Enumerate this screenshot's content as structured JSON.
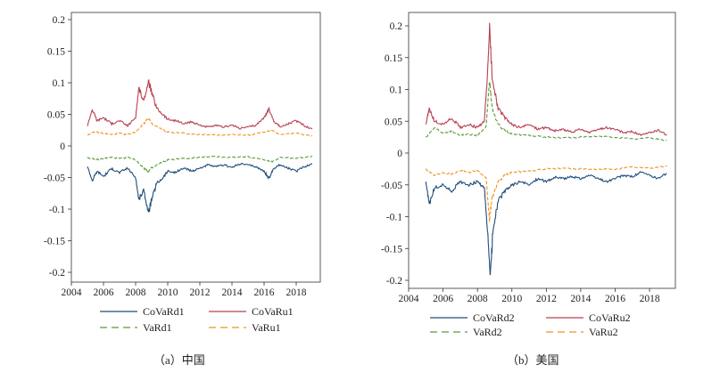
{
  "chart_data": [
    {
      "type": "line",
      "caption": "（a）中国",
      "xlim": [
        2004,
        2019.5
      ],
      "ylim": [
        -0.2,
        0.2
      ],
      "xticks": [
        2004,
        2006,
        2008,
        2010,
        2012,
        2014,
        2016,
        2018
      ],
      "yticks": [
        -0.2,
        -0.15,
        -0.1,
        -0.05,
        0,
        0.05,
        0.1,
        0.15,
        0.2
      ],
      "yticklabels": [
        "-0.2",
        "-0.15",
        "-0.1",
        "-0.05",
        "0",
        "0.05",
        "0.1",
        "0.15",
        "0.2"
      ],
      "legend": [
        "CoVaRd1",
        "CoVaRu1",
        "VaRd1",
        "VaRu1"
      ],
      "series": [
        {
          "name": "CoVaRd1",
          "color": "#1f4e79",
          "dash": "solid",
          "points": [
            [
              2005.0,
              -0.032
            ],
            [
              2005.3,
              -0.055
            ],
            [
              2005.6,
              -0.04
            ],
            [
              2006.0,
              -0.048
            ],
            [
              2006.5,
              -0.036
            ],
            [
              2007.0,
              -0.042
            ],
            [
              2007.5,
              -0.035
            ],
            [
              2008.0,
              -0.05
            ],
            [
              2008.2,
              -0.085
            ],
            [
              2008.5,
              -0.07
            ],
            [
              2008.8,
              -0.106
            ],
            [
              2009.0,
              -0.085
            ],
            [
              2009.3,
              -0.06
            ],
            [
              2009.7,
              -0.05
            ],
            [
              2010.0,
              -0.04
            ],
            [
              2010.5,
              -0.042
            ],
            [
              2011.0,
              -0.035
            ],
            [
              2011.5,
              -0.04
            ],
            [
              2012.0,
              -0.035
            ],
            [
              2012.5,
              -0.03
            ],
            [
              2013.0,
              -0.033
            ],
            [
              2013.5,
              -0.03
            ],
            [
              2014.0,
              -0.034
            ],
            [
              2014.5,
              -0.028
            ],
            [
              2015.0,
              -0.03
            ],
            [
              2015.5,
              -0.033
            ],
            [
              2016.0,
              -0.04
            ],
            [
              2016.3,
              -0.052
            ],
            [
              2016.6,
              -0.035
            ],
            [
              2017.0,
              -0.03
            ],
            [
              2017.5,
              -0.035
            ],
            [
              2018.0,
              -0.04
            ],
            [
              2018.5,
              -0.033
            ],
            [
              2019.0,
              -0.028
            ]
          ]
        },
        {
          "name": "CoVaRu1",
          "color": "#b84150",
          "dash": "solid",
          "points": [
            [
              2005.0,
              0.032
            ],
            [
              2005.3,
              0.058
            ],
            [
              2005.6,
              0.04
            ],
            [
              2006.0,
              0.045
            ],
            [
              2006.5,
              0.035
            ],
            [
              2007.0,
              0.04
            ],
            [
              2007.5,
              0.032
            ],
            [
              2008.0,
              0.045
            ],
            [
              2008.2,
              0.092
            ],
            [
              2008.5,
              0.07
            ],
            [
              2008.8,
              0.102
            ],
            [
              2009.0,
              0.085
            ],
            [
              2009.3,
              0.06
            ],
            [
              2009.7,
              0.05
            ],
            [
              2010.0,
              0.042
            ],
            [
              2010.5,
              0.04
            ],
            [
              2011.0,
              0.035
            ],
            [
              2011.5,
              0.038
            ],
            [
              2012.0,
              0.033
            ],
            [
              2012.5,
              0.03
            ],
            [
              2013.0,
              0.032
            ],
            [
              2013.5,
              0.03
            ],
            [
              2014.0,
              0.033
            ],
            [
              2014.5,
              0.028
            ],
            [
              2015.0,
              0.03
            ],
            [
              2015.5,
              0.033
            ],
            [
              2016.0,
              0.045
            ],
            [
              2016.3,
              0.058
            ],
            [
              2016.6,
              0.04
            ],
            [
              2017.0,
              0.03
            ],
            [
              2017.5,
              0.035
            ],
            [
              2018.0,
              0.04
            ],
            [
              2018.5,
              0.032
            ],
            [
              2019.0,
              0.027
            ]
          ]
        },
        {
          "name": "VaRd1",
          "color": "#5a9a3a",
          "dash": "dashed",
          "points": [
            [
              2005.0,
              -0.018
            ],
            [
              2005.5,
              -0.022
            ],
            [
              2006.0,
              -0.02
            ],
            [
              2006.5,
              -0.018
            ],
            [
              2007.0,
              -0.02
            ],
            [
              2007.5,
              -0.018
            ],
            [
              2008.0,
              -0.022
            ],
            [
              2008.5,
              -0.035
            ],
            [
              2008.8,
              -0.04
            ],
            [
              2009.0,
              -0.035
            ],
            [
              2009.5,
              -0.028
            ],
            [
              2010.0,
              -0.022
            ],
            [
              2011.0,
              -0.02
            ],
            [
              2012.0,
              -0.018
            ],
            [
              2013.0,
              -0.017
            ],
            [
              2014.0,
              -0.018
            ],
            [
              2015.0,
              -0.017
            ],
            [
              2016.0,
              -0.022
            ],
            [
              2016.5,
              -0.025
            ],
            [
              2017.0,
              -0.018
            ],
            [
              2018.0,
              -0.02
            ],
            [
              2019.0,
              -0.016
            ]
          ]
        },
        {
          "name": "VaRu1",
          "color": "#f0921e",
          "dash": "dashed",
          "points": [
            [
              2005.0,
              0.018
            ],
            [
              2005.5,
              0.022
            ],
            [
              2006.0,
              0.02
            ],
            [
              2006.5,
              0.018
            ],
            [
              2007.0,
              0.02
            ],
            [
              2007.5,
              0.018
            ],
            [
              2008.0,
              0.022
            ],
            [
              2008.5,
              0.035
            ],
            [
              2008.8,
              0.045
            ],
            [
              2009.0,
              0.035
            ],
            [
              2009.5,
              0.028
            ],
            [
              2010.0,
              0.022
            ],
            [
              2011.0,
              0.02
            ],
            [
              2012.0,
              0.018
            ],
            [
              2013.0,
              0.017
            ],
            [
              2014.0,
              0.018
            ],
            [
              2015.0,
              0.017
            ],
            [
              2016.0,
              0.022
            ],
            [
              2016.5,
              0.025
            ],
            [
              2017.0,
              0.018
            ],
            [
              2018.0,
              0.02
            ],
            [
              2019.0,
              0.016
            ]
          ]
        }
      ]
    },
    {
      "type": "line",
      "caption": "（b）美国",
      "xlim": [
        2004,
        2019.5
      ],
      "ylim": [
        -0.2,
        0.2
      ],
      "xticks": [
        2004,
        2006,
        2008,
        2010,
        2012,
        2014,
        2016,
        2018
      ],
      "yticks": [
        -0.2,
        -0.15,
        -0.1,
        -0.05,
        0,
        0.05,
        0.1,
        0.15,
        0.2
      ],
      "yticklabels": [
        "-0.2",
        "-0.15",
        "-0.1",
        "-0.05",
        "0",
        "0.05",
        "0.1",
        "0.15",
        "0.2"
      ],
      "legend": [
        "CoVaRd2",
        "CoVaRu2",
        "VaRd2",
        "VaRu2"
      ],
      "series": [
        {
          "name": "CoVaRd2",
          "color": "#1f4e79",
          "dash": "solid",
          "points": [
            [
              2005.0,
              -0.045
            ],
            [
              2005.2,
              -0.08
            ],
            [
              2005.5,
              -0.055
            ],
            [
              2006.0,
              -0.05
            ],
            [
              2006.5,
              -0.06
            ],
            [
              2007.0,
              -0.045
            ],
            [
              2007.5,
              -0.05
            ],
            [
              2008.0,
              -0.045
            ],
            [
              2008.4,
              -0.055
            ],
            [
              2008.6,
              -0.13
            ],
            [
              2008.75,
              -0.195
            ],
            [
              2008.9,
              -0.12
            ],
            [
              2009.2,
              -0.075
            ],
            [
              2009.6,
              -0.06
            ],
            [
              2010.0,
              -0.05
            ],
            [
              2010.5,
              -0.045
            ],
            [
              2011.0,
              -0.05
            ],
            [
              2011.5,
              -0.04
            ],
            [
              2012.0,
              -0.045
            ],
            [
              2012.5,
              -0.038
            ],
            [
              2013.0,
              -0.04
            ],
            [
              2013.5,
              -0.037
            ],
            [
              2014.0,
              -0.04
            ],
            [
              2014.5,
              -0.035
            ],
            [
              2015.0,
              -0.04
            ],
            [
              2015.5,
              -0.045
            ],
            [
              2016.0,
              -0.04
            ],
            [
              2016.5,
              -0.035
            ],
            [
              2017.0,
              -0.037
            ],
            [
              2017.5,
              -0.03
            ],
            [
              2018.0,
              -0.035
            ],
            [
              2018.5,
              -0.04
            ],
            [
              2019.0,
              -0.032
            ]
          ]
        },
        {
          "name": "CoVaRu2",
          "color": "#b84150",
          "dash": "solid",
          "points": [
            [
              2005.0,
              0.045
            ],
            [
              2005.2,
              0.07
            ],
            [
              2005.5,
              0.05
            ],
            [
              2006.0,
              0.045
            ],
            [
              2006.5,
              0.055
            ],
            [
              2007.0,
              0.04
            ],
            [
              2007.5,
              0.045
            ],
            [
              2008.0,
              0.04
            ],
            [
              2008.4,
              0.05
            ],
            [
              2008.6,
              0.13
            ],
            [
              2008.7,
              0.198
            ],
            [
              2008.85,
              0.12
            ],
            [
              2009.2,
              0.07
            ],
            [
              2009.6,
              0.055
            ],
            [
              2010.0,
              0.045
            ],
            [
              2010.5,
              0.04
            ],
            [
              2011.0,
              0.045
            ],
            [
              2011.5,
              0.038
            ],
            [
              2012.0,
              0.04
            ],
            [
              2012.5,
              0.035
            ],
            [
              2013.0,
              0.037
            ],
            [
              2013.5,
              0.033
            ],
            [
              2014.0,
              0.038
            ],
            [
              2014.5,
              0.032
            ],
            [
              2015.0,
              0.037
            ],
            [
              2015.5,
              0.04
            ],
            [
              2016.0,
              0.037
            ],
            [
              2016.5,
              0.032
            ],
            [
              2017.0,
              0.034
            ],
            [
              2017.5,
              0.028
            ],
            [
              2018.0,
              0.032
            ],
            [
              2018.5,
              0.036
            ],
            [
              2019.0,
              0.028
            ]
          ]
        },
        {
          "name": "VaRd2",
          "color": "#5a9a3a",
          "dash": "dashed",
          "points": [
            [
              2005.0,
              0.025
            ],
            [
              2005.5,
              0.04
            ],
            [
              2006.0,
              0.032
            ],
            [
              2006.5,
              0.035
            ],
            [
              2007.0,
              0.028
            ],
            [
              2007.5,
              0.03
            ],
            [
              2008.0,
              0.028
            ],
            [
              2008.5,
              0.04
            ],
            [
              2008.7,
              0.115
            ],
            [
              2008.85,
              0.07
            ],
            [
              2009.2,
              0.045
            ],
            [
              2009.6,
              0.035
            ],
            [
              2010.0,
              0.03
            ],
            [
              2011.0,
              0.028
            ],
            [
              2012.0,
              0.025
            ],
            [
              2013.0,
              0.024
            ],
            [
              2014.0,
              0.025
            ],
            [
              2015.0,
              0.026
            ],
            [
              2016.0,
              0.025
            ],
            [
              2017.0,
              0.022
            ],
            [
              2018.0,
              0.024
            ],
            [
              2019.0,
              0.02
            ]
          ]
        },
        {
          "name": "VaRu2",
          "color": "#f0921e",
          "dash": "dashed",
          "points": [
            [
              2005.0,
              -0.025
            ],
            [
              2005.5,
              -0.035
            ],
            [
              2006.0,
              -0.03
            ],
            [
              2006.5,
              -0.033
            ],
            [
              2007.0,
              -0.027
            ],
            [
              2007.5,
              -0.03
            ],
            [
              2008.0,
              -0.027
            ],
            [
              2008.5,
              -0.04
            ],
            [
              2008.7,
              -0.105
            ],
            [
              2008.85,
              -0.07
            ],
            [
              2009.2,
              -0.045
            ],
            [
              2009.6,
              -0.035
            ],
            [
              2010.0,
              -0.03
            ],
            [
              2011.0,
              -0.028
            ],
            [
              2012.0,
              -0.025
            ],
            [
              2013.0,
              -0.024
            ],
            [
              2014.0,
              -0.025
            ],
            [
              2015.0,
              -0.026
            ],
            [
              2016.0,
              -0.025
            ],
            [
              2017.0,
              -0.022
            ],
            [
              2018.0,
              -0.024
            ],
            [
              2019.0,
              -0.02
            ]
          ]
        }
      ]
    }
  ]
}
